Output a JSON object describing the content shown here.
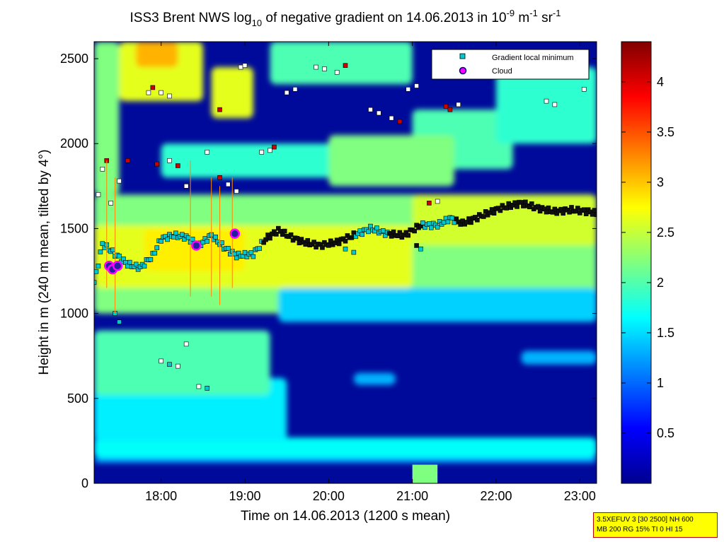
{
  "chart_data": {
    "type": "heatmap",
    "title_parts": {
      "pre": "ISS3 Brent NWS log",
      "sub": "10",
      "mid": " of negative gradient on 14.06.2013 in 10",
      "sup1": "-9",
      "mid2": " m",
      "sup2": "-1",
      "mid3": " sr",
      "sup3": "-1"
    },
    "xlabel": "Time on 14.06.2013 (1200 s mean)",
    "ylabel": "Height in m (240 m mean, tilted by 4°)",
    "x_range_hours": [
      17.2,
      23.2
    ],
    "ylim": [
      0,
      2600
    ],
    "x_ticks": [
      "18:00",
      "19:00",
      "20:00",
      "21:00",
      "22:00",
      "23:00"
    ],
    "y_ticks": [
      "0",
      "500",
      "1000",
      "1500",
      "2000",
      "2500"
    ],
    "colorbar": {
      "range": [
        0,
        4.4
      ],
      "ticks": [
        "0.5",
        "1",
        "1.5",
        "2",
        "2.5",
        "3",
        "3.5",
        "4"
      ],
      "colormap": "jet"
    },
    "legend": {
      "placement": "top-right",
      "entries": [
        {
          "label": "Gradient local minimum",
          "marker": "square",
          "color": "#00c8d0"
        },
        {
          "label": "Cloud",
          "marker": "circle",
          "color": "#ff00ff"
        }
      ]
    },
    "gradient_minimum_layer": [
      {
        "t": 17.2,
        "h": 1180
      },
      {
        "t": 17.3,
        "h": 1410
      },
      {
        "t": 17.45,
        "h": 1350
      },
      {
        "t": 17.6,
        "h": 1290
      },
      {
        "t": 17.75,
        "h": 1270
      },
      {
        "t": 17.9,
        "h": 1340
      },
      {
        "t": 18.0,
        "h": 1440
      },
      {
        "t": 18.15,
        "h": 1460
      },
      {
        "t": 18.3,
        "h": 1450
      },
      {
        "t": 18.45,
        "h": 1400
      },
      {
        "t": 18.6,
        "h": 1460
      },
      {
        "t": 18.75,
        "h": 1390
      },
      {
        "t": 18.9,
        "h": 1340
      },
      {
        "t": 19.1,
        "h": 1350
      },
      {
        "t": 19.25,
        "h": 1440
      },
      {
        "t": 19.4,
        "h": 1490
      },
      {
        "t": 19.55,
        "h": 1450
      },
      {
        "t": 19.7,
        "h": 1420
      },
      {
        "t": 19.9,
        "h": 1400
      },
      {
        "t": 20.1,
        "h": 1420
      },
      {
        "t": 20.3,
        "h": 1460
      },
      {
        "t": 20.5,
        "h": 1500
      },
      {
        "t": 20.7,
        "h": 1470
      },
      {
        "t": 20.9,
        "h": 1460
      },
      {
        "t": 21.1,
        "h": 1520
      },
      {
        "t": 21.3,
        "h": 1520
      },
      {
        "t": 21.45,
        "h": 1560
      },
      {
        "t": 21.6,
        "h": 1530
      },
      {
        "t": 21.75,
        "h": 1560
      },
      {
        "t": 21.9,
        "h": 1590
      },
      {
        "t": 22.05,
        "h": 1620
      },
      {
        "t": 22.3,
        "h": 1650
      },
      {
        "t": 22.5,
        "h": 1620
      },
      {
        "t": 22.7,
        "h": 1600
      },
      {
        "t": 22.9,
        "h": 1610
      },
      {
        "t": 23.1,
        "h": 1600
      },
      {
        "t": 23.2,
        "h": 1590
      }
    ],
    "cloud_points": [
      {
        "t": 17.38,
        "h": 1280
      },
      {
        "t": 17.42,
        "h": 1260
      },
      {
        "t": 17.48,
        "h": 1280
      },
      {
        "t": 18.42,
        "h": 1400
      },
      {
        "t": 18.88,
        "h": 1470
      }
    ],
    "annotation_patch": {
      "t_start": 21.0,
      "t_end": 21.3,
      "h_start": 0,
      "h_end": 110
    }
  },
  "info_box": {
    "line1": "3.5XEFUV 3 [30 2500] NH 600",
    "line2": "MB 200 RG 15% TI 0 HI 15"
  }
}
